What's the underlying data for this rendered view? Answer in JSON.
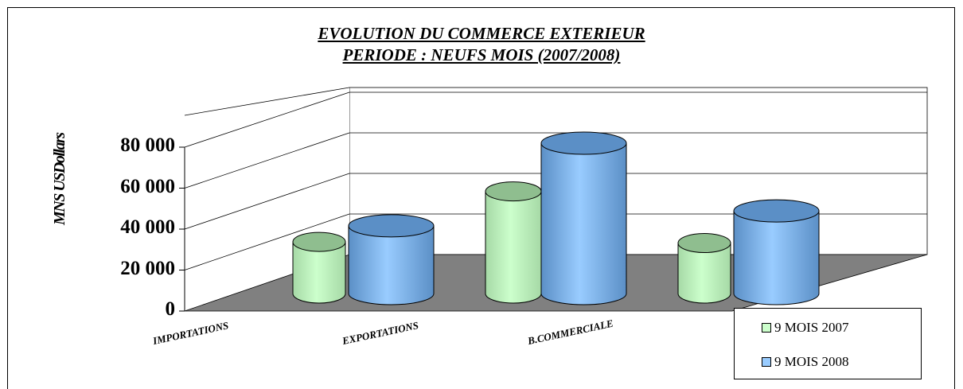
{
  "chart_data": {
    "type": "bar",
    "style": "3d-cylinder",
    "title": "EVOLUTION DU COMMERCE EXTERIEUR",
    "subtitle": "PERIODE : NEUFS MOIS (2007/2008)",
    "ylabel": "MNS USDollars",
    "xlabel": "",
    "ylim": [
      0,
      80000
    ],
    "yticks": [
      "0",
      "20 000",
      "40 000",
      "60 000",
      "80 000"
    ],
    "categories": [
      "IMPORTATIONS",
      "EXPORTATIONS",
      "B.COMMERCIALE"
    ],
    "series": [
      {
        "name": "9 MOIS  2007",
        "values": [
          22500,
          44500,
          22000
        ],
        "color": "#ccffcc"
      },
      {
        "name": "9 MOIS 2008",
        "values": [
          29500,
          65500,
          36000
        ],
        "color": "#99ccff"
      }
    ],
    "grid": true,
    "legend_position": "bottom-right"
  }
}
